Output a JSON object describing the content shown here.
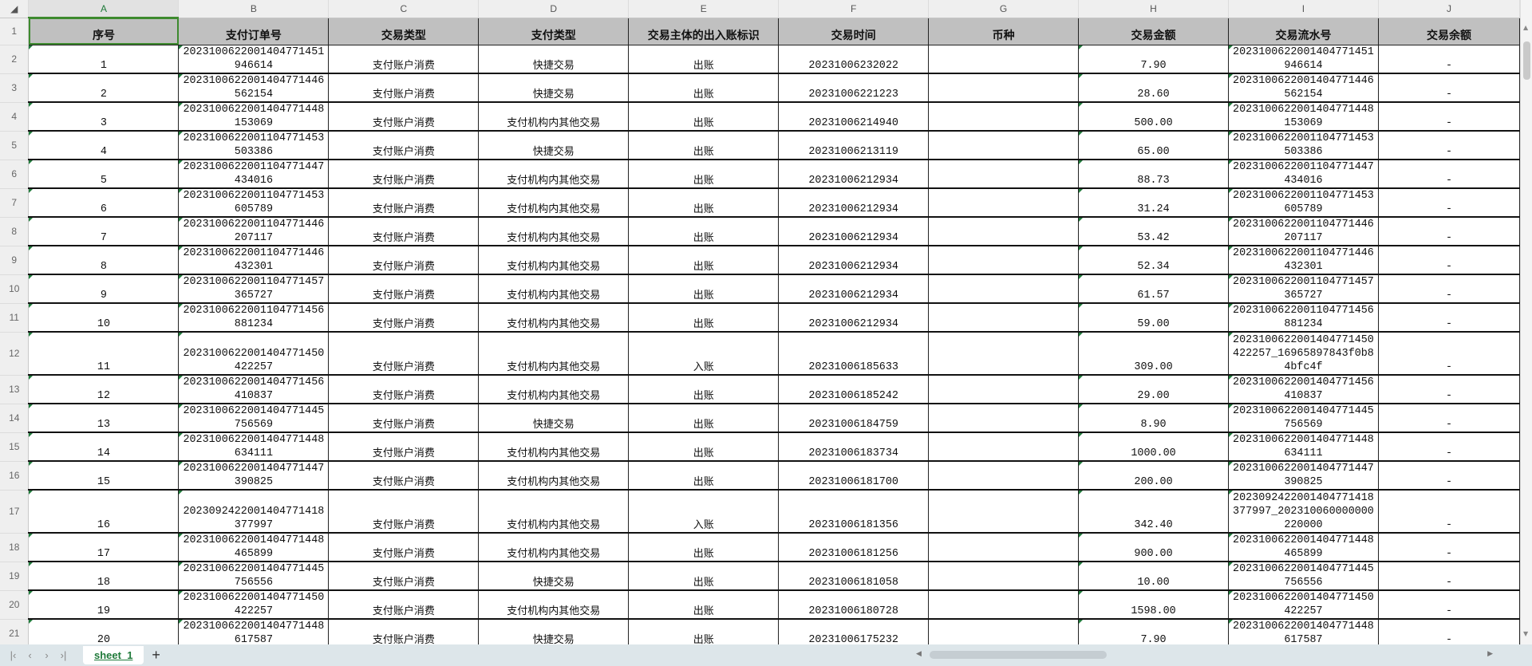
{
  "columns": [
    "A",
    "B",
    "C",
    "D",
    "E",
    "F",
    "G",
    "H",
    "I",
    "J"
  ],
  "selected_cell": "A1",
  "headers": [
    "序号",
    "支付订单号",
    "交易类型",
    "支付类型",
    "交易主体的出入账标识",
    "交易时间",
    "币种",
    "交易金额",
    "交易流水号",
    "交易余额"
  ],
  "rows": [
    {
      "n": "2",
      "tall": false,
      "cells": [
        "1",
        "2023100622001404771451946614",
        "支付账户消费",
        "快捷交易",
        "出账",
        "20231006232022",
        "",
        "7.90",
        "2023100622001404771451946614",
        "-"
      ]
    },
    {
      "n": "3",
      "tall": false,
      "cells": [
        "2",
        "2023100622001404771446562154",
        "支付账户消费",
        "快捷交易",
        "出账",
        "20231006221223",
        "",
        "28.60",
        "2023100622001404771446562154",
        "-"
      ]
    },
    {
      "n": "4",
      "tall": false,
      "cells": [
        "3",
        "2023100622001404771448153069",
        "支付账户消费",
        "支付机构内其他交易",
        "出账",
        "20231006214940",
        "",
        "500.00",
        "2023100622001404771448153069",
        "-"
      ]
    },
    {
      "n": "5",
      "tall": false,
      "cells": [
        "4",
        "2023100622001104771453503386",
        "支付账户消费",
        "快捷交易",
        "出账",
        "20231006213119",
        "",
        "65.00",
        "2023100622001104771453503386",
        "-"
      ]
    },
    {
      "n": "6",
      "tall": false,
      "cells": [
        "5",
        "2023100622001104771447434016",
        "支付账户消费",
        "支付机构内其他交易",
        "出账",
        "20231006212934",
        "",
        "88.73",
        "2023100622001104771447434016",
        "-"
      ]
    },
    {
      "n": "7",
      "tall": false,
      "cells": [
        "6",
        "2023100622001104771453605789",
        "支付账户消费",
        "支付机构内其他交易",
        "出账",
        "20231006212934",
        "",
        "31.24",
        "2023100622001104771453605789",
        "-"
      ]
    },
    {
      "n": "8",
      "tall": false,
      "cells": [
        "7",
        "2023100622001104771446207117",
        "支付账户消费",
        "支付机构内其他交易",
        "出账",
        "20231006212934",
        "",
        "53.42",
        "2023100622001104771446207117",
        "-"
      ]
    },
    {
      "n": "9",
      "tall": false,
      "cells": [
        "8",
        "2023100622001104771446432301",
        "支付账户消费",
        "支付机构内其他交易",
        "出账",
        "20231006212934",
        "",
        "52.34",
        "2023100622001104771446432301",
        "-"
      ]
    },
    {
      "n": "10",
      "tall": false,
      "cells": [
        "9",
        "2023100622001104771457365727",
        "支付账户消费",
        "支付机构内其他交易",
        "出账",
        "20231006212934",
        "",
        "61.57",
        "2023100622001104771457365727",
        "-"
      ]
    },
    {
      "n": "11",
      "tall": false,
      "cells": [
        "10",
        "2023100622001104771456881234",
        "支付账户消费",
        "支付机构内其他交易",
        "出账",
        "20231006212934",
        "",
        "59.00",
        "2023100622001104771456881234",
        "-"
      ]
    },
    {
      "n": "12",
      "tall": true,
      "cells": [
        "11",
        "2023100622001404771450422257",
        "支付账户消费",
        "支付机构内其他交易",
        "入账",
        "20231006185633",
        "",
        "309.00",
        "2023100622001404771450422257_16965897843f0b84bfc4f",
        "-"
      ]
    },
    {
      "n": "13",
      "tall": false,
      "cells": [
        "12",
        "2023100622001404771456410837",
        "支付账户消费",
        "支付机构内其他交易",
        "出账",
        "20231006185242",
        "",
        "29.00",
        "2023100622001404771456410837",
        "-"
      ]
    },
    {
      "n": "14",
      "tall": false,
      "cells": [
        "13",
        "2023100622001404771445756569",
        "支付账户消费",
        "快捷交易",
        "出账",
        "20231006184759",
        "",
        "8.90",
        "2023100622001404771445756569",
        "-"
      ]
    },
    {
      "n": "15",
      "tall": false,
      "cells": [
        "14",
        "2023100622001404771448634111",
        "支付账户消费",
        "支付机构内其他交易",
        "出账",
        "20231006183734",
        "",
        "1000.00",
        "2023100622001404771448634111",
        "-"
      ]
    },
    {
      "n": "16",
      "tall": false,
      "cells": [
        "15",
        "2023100622001404771447390825",
        "支付账户消费",
        "支付机构内其他交易",
        "出账",
        "20231006181700",
        "",
        "200.00",
        "2023100622001404771447390825",
        "-"
      ]
    },
    {
      "n": "17",
      "tall": true,
      "cells": [
        "16",
        "2023092422001404771418377997",
        "支付账户消费",
        "支付机构内其他交易",
        "入账",
        "20231006181356",
        "",
        "342.40",
        "2023092422001404771418377997_202310060000000220000",
        "-"
      ]
    },
    {
      "n": "18",
      "tall": false,
      "cells": [
        "17",
        "2023100622001404771448465899",
        "支付账户消费",
        "支付机构内其他交易",
        "出账",
        "20231006181256",
        "",
        "900.00",
        "2023100622001404771448465899",
        "-"
      ]
    },
    {
      "n": "19",
      "tall": false,
      "cells": [
        "18",
        "2023100622001404771445756556",
        "支付账户消费",
        "快捷交易",
        "出账",
        "20231006181058",
        "",
        "10.00",
        "2023100622001404771445756556",
        "-"
      ]
    },
    {
      "n": "20",
      "tall": false,
      "cells": [
        "19",
        "2023100622001404771450422257",
        "支付账户消费",
        "支付机构内其他交易",
        "出账",
        "20231006180728",
        "",
        "1598.00",
        "2023100622001404771450422257",
        "-"
      ]
    },
    {
      "n": "21",
      "tall": false,
      "cells": [
        "20",
        "2023100622001404771448617587",
        "支付账户消费",
        "快捷交易",
        "出账",
        "20231006175232",
        "",
        "7.90",
        "2023100622001404771448617587",
        "-"
      ]
    }
  ],
  "sheet_tabs": [
    "sheet_1"
  ],
  "icons": {
    "first": "|‹",
    "prev": "‹",
    "next": "›",
    "last": "›|",
    "add": "+"
  },
  "colors": {
    "accent": "#1f7a3a",
    "header_fill": "#c0c0c0"
  }
}
